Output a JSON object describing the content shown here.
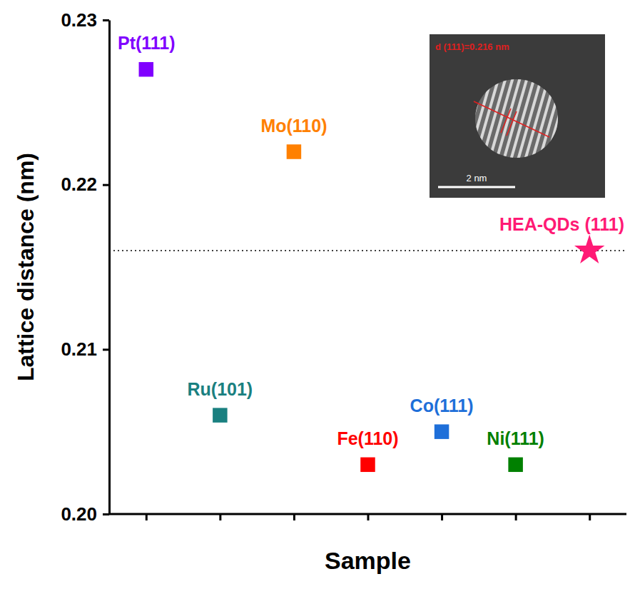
{
  "chart_data": {
    "type": "scatter",
    "x_label": "Sample",
    "y_label": "Lattice distance (nm)",
    "categories": [
      null,
      null,
      null,
      null,
      null,
      null,
      null
    ],
    "ylim": [
      0.2,
      0.23
    ],
    "yticks": [
      {
        "value": 0.2,
        "label": "0.20"
      },
      0.21,
      0.22,
      0.23
    ],
    "tick_labels": "y",
    "series": [
      {
        "marker": "square",
        "values": [
          0.227,
          0.206,
          0.222,
          0.203,
          0.205,
          0.203,
          null
        ],
        "labels": [
          "Pt(111)",
          "Ru(101)",
          "Mo(110)",
          "Fe(110)",
          "Co(111)",
          "Ni(111)",
          null
        ],
        "colors": [
          "#8000ff",
          "#1a8080",
          "#ff8000",
          "#ff0000",
          "#1e6fd9",
          "#008000",
          null
        ]
      },
      {
        "marker": "star",
        "values": [
          null,
          null,
          null,
          null,
          null,
          null,
          0.216
        ],
        "labels": [
          null,
          null,
          null,
          null,
          null,
          null,
          "HEA-QDs (111)"
        ],
        "color": "#ff1a75"
      }
    ],
    "reference_line": {
      "value": 0.216,
      "line_style": "dotted"
    },
    "inset": {
      "annotation": "d (111)=0.216 nm",
      "scale_bar": "2 nm"
    }
  }
}
